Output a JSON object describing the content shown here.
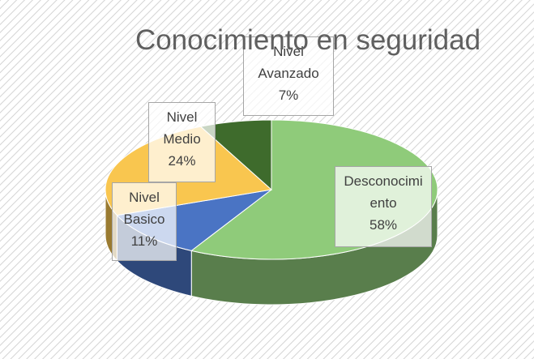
{
  "chart_data": {
    "type": "pie3d",
    "title": "Conocimiento en seguridad",
    "categories": [
      "Desconocimiento",
      "Nivel Basico",
      "Nivel Medio",
      "Nivel Avanzado"
    ],
    "values": [
      58,
      11,
      24,
      7
    ],
    "value_labels": [
      "58%",
      "11%",
      "24%",
      "7%"
    ],
    "colors": [
      "#8fcb7a",
      "#4a74c4",
      "#f9c64f",
      "#3e6b2c"
    ]
  }
}
